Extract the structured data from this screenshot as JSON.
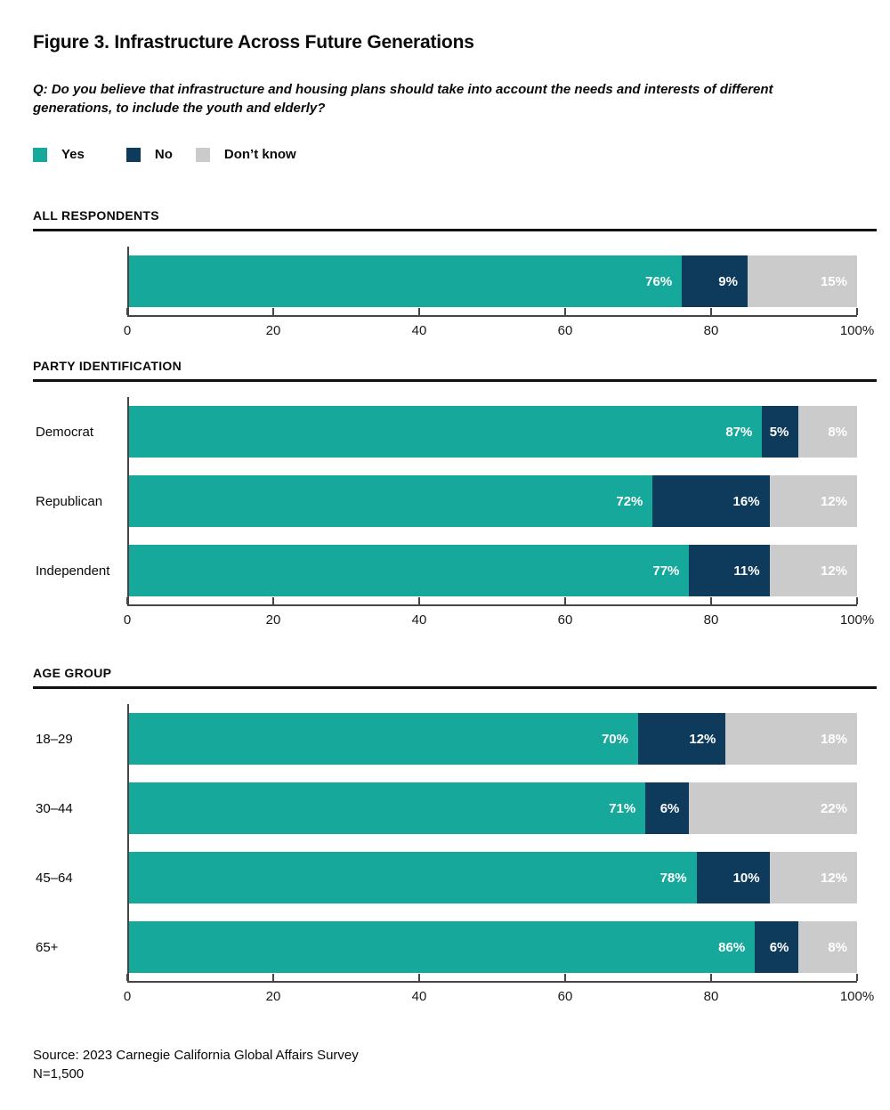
{
  "title": "Figure 3. Infrastructure Across Future Generations",
  "question": {
    "line1": "Q: Do you believe that infrastructure and housing plans should take into account the needs and interests of different",
    "line2": "generations, to include the youth and elderly?"
  },
  "legend": [
    {
      "label": "Yes",
      "color": "#16a89a"
    },
    {
      "label": "No",
      "color": "#0e3a5c"
    },
    {
      "label": "Don’t know",
      "color": "#cbcbcb"
    }
  ],
  "colors": {
    "yes": "#16a89a",
    "no": "#0e3a5c",
    "dont_know": "#cbcbcb",
    "axis": "#454545",
    "rule": "#101010"
  },
  "sections": [
    {
      "header": "ALL RESPONDENTS"
    },
    {
      "header": "PARTY IDENTIFICATION"
    },
    {
      "header": "AGE GROUP"
    }
  ],
  "chart_data": [
    {
      "type": "bar",
      "title": "ALL RESPONDENTS",
      "orientation": "horizontal",
      "stacked": true,
      "categories": [
        ""
      ],
      "series": [
        {
          "name": "Yes",
          "color": "#16a89a",
          "values": [
            76
          ]
        },
        {
          "name": "No",
          "color": "#0e3a5c",
          "values": [
            9
          ]
        },
        {
          "name": "Don’t know",
          "color": "#cbcbcb",
          "values": [
            15
          ]
        }
      ],
      "xlim": [
        0,
        100
      ],
      "x_tick_positions": [
        0,
        20,
        40,
        60,
        80,
        100
      ],
      "x_tick_labels": [
        "0",
        "20",
        "40",
        "60",
        "80",
        "100%"
      ],
      "grid": false,
      "value_label_suffix": "%"
    },
    {
      "type": "bar",
      "title": "PARTY IDENTIFICATION",
      "orientation": "horizontal",
      "stacked": true,
      "categories": [
        "Democrat",
        "Republican",
        "Independent"
      ],
      "series": [
        {
          "name": "Yes",
          "color": "#16a89a",
          "values": [
            87,
            72,
            77
          ]
        },
        {
          "name": "No",
          "color": "#0e3a5c",
          "values": [
            5,
            16,
            11
          ]
        },
        {
          "name": "Don’t know",
          "color": "#cbcbcb",
          "values": [
            8,
            12,
            12
          ]
        }
      ],
      "xlim": [
        0,
        100
      ],
      "x_tick_positions": [
        0,
        20,
        40,
        60,
        80,
        100
      ],
      "x_tick_labels": [
        "0",
        "20",
        "40",
        "60",
        "80",
        "100%"
      ],
      "grid": false,
      "value_label_suffix": "%"
    },
    {
      "type": "bar",
      "title": "AGE GROUP",
      "orientation": "horizontal",
      "stacked": true,
      "categories": [
        "18–29",
        "30–44",
        "45–64",
        "65+"
      ],
      "series": [
        {
          "name": "Yes",
          "color": "#16a89a",
          "values": [
            70,
            71,
            78,
            86
          ]
        },
        {
          "name": "No",
          "color": "#0e3a5c",
          "values": [
            12,
            6,
            10,
            6
          ]
        },
        {
          "name": "Don’t know",
          "color": "#cbcbcb",
          "values": [
            18,
            22,
            12,
            8
          ]
        }
      ],
      "xlim": [
        0,
        100
      ],
      "x_tick_positions": [
        0,
        20,
        40,
        60,
        80,
        100
      ],
      "x_tick_labels": [
        "0",
        "20",
        "40",
        "60",
        "80",
        "100%"
      ],
      "grid": false,
      "value_label_suffix": "%"
    }
  ],
  "source": {
    "line1": "Source: 2023 Carnegie California Global Affairs Survey",
    "line2": "N=1,500"
  }
}
